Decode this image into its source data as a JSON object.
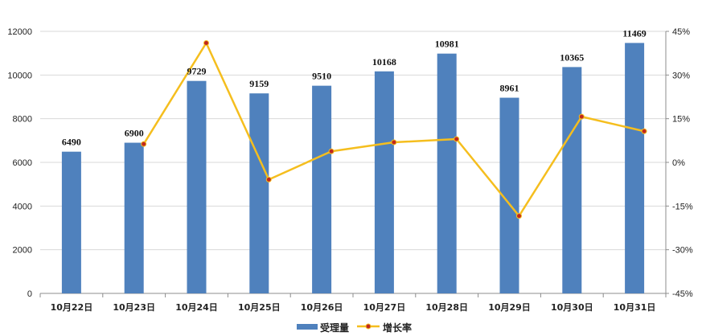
{
  "chart_data": {
    "type": "bar",
    "categories": [
      "10月22日",
      "10月23日",
      "10月24日",
      "10月25日",
      "10月26日",
      "10月27日",
      "10月28日",
      "10月29日",
      "10月30日",
      "10月31日"
    ],
    "series": [
      {
        "name": "受理量",
        "type": "bar",
        "axis": "left",
        "color": "#4f81bd",
        "values": [
          6490,
          6900,
          9729,
          9159,
          9510,
          10168,
          10981,
          8961,
          10365,
          11469
        ]
      },
      {
        "name": "增长率",
        "type": "line",
        "axis": "right",
        "color": "#f5be1e",
        "marker_color": "#c0271f",
        "values": [
          null,
          6.3,
          41.0,
          -5.9,
          3.8,
          6.9,
          8.0,
          -18.4,
          15.7,
          10.7
        ]
      }
    ],
    "y_left": {
      "min": 0,
      "max": 12000,
      "ticks": [
        0,
        2000,
        4000,
        6000,
        8000,
        10000,
        12000
      ]
    },
    "y_right": {
      "min": -45,
      "max": 45,
      "ticks": [
        "-45%",
        "-30%",
        "-15%",
        "0%",
        "15%",
        "30%",
        "45%"
      ]
    },
    "grid": true,
    "legend": {
      "position": "bottom",
      "items": [
        "受理量",
        "增长率"
      ]
    },
    "title": "",
    "xlabel": "",
    "ylabel": ""
  }
}
